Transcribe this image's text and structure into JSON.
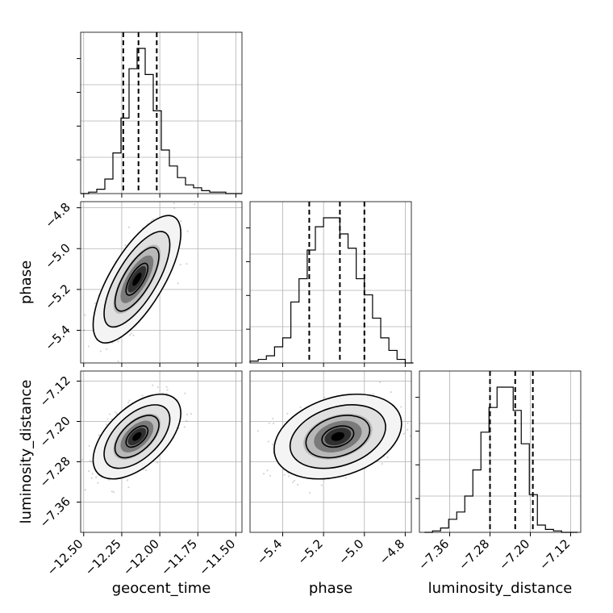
{
  "chart_data": {
    "type": "corner",
    "parameters": [
      "geocent_time",
      "phase",
      "luminosity_distance"
    ],
    "axes": {
      "geocent_time": {
        "range": [
          -12.52,
          -11.46
        ],
        "ticks": [
          -12.5,
          -12.25,
          -12.0,
          -11.75,
          -11.5
        ],
        "tick_labels": [
          "−12.50",
          "−12.25",
          "−12.00",
          "−11.75",
          "−11.50"
        ],
        "quantiles": [
          -12.24,
          -12.14,
          -12.02
        ],
        "hist_edges_start": -12.52,
        "hist_bin_width": 0.053,
        "hist_counts": [
          0,
          1,
          3,
          10,
          28,
          52,
          86,
          100,
          82,
          57,
          30,
          19,
          11,
          6,
          4,
          2,
          1,
          1,
          0,
          0
        ]
      },
      "phase": {
        "range": [
          -5.56,
          -4.77
        ],
        "ticks": [
          -5.4,
          -5.2,
          -5.0,
          -4.8
        ],
        "tick_labels": [
          "−5.4",
          "−5.2",
          "−5.0",
          "−4.8"
        ],
        "quantiles": [
          -5.27,
          -5.12,
          -5.0
        ],
        "hist_edges_start": -5.56,
        "hist_bin_width": 0.04,
        "hist_counts": [
          1,
          2,
          4,
          9,
          14,
          34,
          47,
          63,
          76,
          81,
          81,
          72,
          64,
          47,
          38,
          25,
          14,
          7,
          2,
          0
        ]
      },
      "luminosity_distance": {
        "range": [
          -7.42,
          -7.1
        ],
        "ticks": [
          -7.36,
          -7.28,
          -7.2,
          -7.12
        ],
        "tick_labels": [
          "−7.36",
          "−7.28",
          "−7.20",
          "−7.12"
        ],
        "quantiles": [
          -7.28,
          -7.23,
          -7.195
        ],
        "hist_edges_start": -7.41,
        "hist_bin_width": 0.016,
        "hist_counts": [
          0,
          1,
          3,
          9,
          14,
          25,
          43,
          69,
          86,
          100,
          100,
          84,
          61,
          26,
          5,
          2,
          1,
          0,
          0
        ]
      }
    },
    "joint": {
      "geocent_time__phase": {
        "mean": [
          -12.15,
          -5.15
        ],
        "std": [
          0.12,
          0.13
        ],
        "corr": 0.72
      },
      "geocent_time__luminosity_distance": {
        "mean": [
          -12.15,
          -7.23
        ],
        "std": [
          0.12,
          0.035
        ],
        "corr": 0.55
      },
      "phase__luminosity_distance": {
        "mean": [
          -5.13,
          -7.23
        ],
        "std": [
          0.13,
          0.035
        ],
        "corr": 0.3
      }
    }
  }
}
